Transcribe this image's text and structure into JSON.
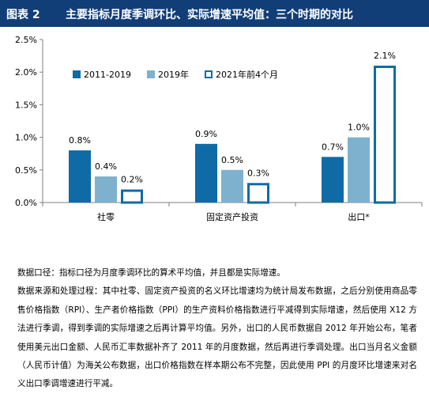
{
  "header": {
    "figure_label": "图表 2",
    "title": "主要指标月度季调环比、实际增速平均值：三个时期的对比"
  },
  "chart_data": {
    "type": "bar",
    "categories": [
      "社零",
      "固定资产投资",
      "出口*"
    ],
    "series": [
      {
        "name": "2011-2019",
        "values": [
          0.8,
          0.9,
          0.7
        ],
        "labels": [
          "0.8%",
          "0.9%",
          "0.7%"
        ],
        "color": "#0f6ba6",
        "style": "filled"
      },
      {
        "name": "2019年",
        "values": [
          0.4,
          0.5,
          1.0
        ],
        "labels": [
          "0.4%",
          "0.5%",
          "1.0%"
        ],
        "color": "#7eb1cd",
        "style": "filled"
      },
      {
        "name": "2021年前4个月",
        "values": [
          0.2,
          0.3,
          2.1
        ],
        "labels": [
          "0.2%",
          "0.3%",
          "2.1%"
        ],
        "color": "#0f6ba6",
        "style": "outline"
      }
    ],
    "yticks": [
      {
        "value": 0.0,
        "label": "0.0%"
      },
      {
        "value": 0.5,
        "label": "0.5%"
      },
      {
        "value": 1.0,
        "label": "1.0%"
      },
      {
        "value": 1.5,
        "label": "1.5%"
      },
      {
        "value": 2.0,
        "label": "2.0%"
      },
      {
        "value": 2.5,
        "label": "2.5%"
      }
    ],
    "ylim": [
      0,
      2.5
    ],
    "xlabel": "",
    "ylabel": "",
    "grid": false,
    "legend": "top-left"
  },
  "notes": {
    "caliber": "数据口径：指标口径为月度季调环比的算术平均值，并且都是实际增速。",
    "source": "数据来源和处理过程：其中社零、固定资产投资的名义环比增速均为统计局发布数据，之后分别使用商品零售价格指数（RPI）、生产者价格指数（PPI）的生产资料价格指数进行平减得到实际增速，然后使用 X12 方法进行季调，得到季调的实际增速之后再计算平均值。另外，出口的人民币数据自 2012 年开始公布，笔者使用美元出口金额、人民币汇率数据补齐了 2011 年的月度数据，然后再进行季调处理。出口当月名义金额（人民币计值）为海关公布数据，出口价格指数在样本期公布不完整，因此使用 PPI 的月度环比增速来对名义出口季调增速进行平减。"
  }
}
